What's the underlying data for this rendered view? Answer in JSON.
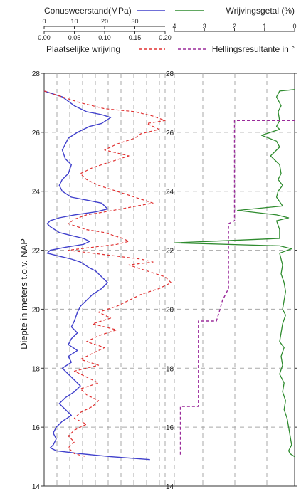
{
  "chart_data": {
    "type": "line",
    "ylabel": "Diepte in meters t.o.v. NAP",
    "ylim": [
      14,
      28
    ],
    "yticks": [
      "14",
      "16",
      "18",
      "20",
      "22",
      "24",
      "26",
      "28"
    ],
    "axes": {
      "cone": {
        "label": "Conusweerstand(MPa)",
        "ticks": [
          "0",
          "10",
          "20",
          "30"
        ],
        "range": [
          0,
          40
        ],
        "color": "#4040cc"
      },
      "friction": {
        "label": "Plaatselijke wrijving",
        "ticks": [
          "0.00",
          "0.05",
          "0.10",
          "0.15",
          "0.20"
        ],
        "range": [
          0,
          0.2
        ],
        "color": "#e03030"
      },
      "ratio": {
        "label": "Wrijvingsgetal (%)",
        "ticks": [
          "4",
          "3",
          "2",
          "1",
          "0"
        ],
        "range": [
          4,
          0
        ],
        "color": "#2e8b2e"
      },
      "incline": {
        "label": "Hellingsresultante in °",
        "color": "#9a2a9a"
      }
    },
    "series": [
      {
        "name": "Conusweerstand(MPa)",
        "axis": "cone",
        "points": [
          [
            0,
            27.4
          ],
          [
            6,
            27.2
          ],
          [
            10,
            26.9
          ],
          [
            14,
            26.7
          ],
          [
            19,
            26.6
          ],
          [
            22,
            26.5
          ],
          [
            19,
            26.3
          ],
          [
            15,
            26.2
          ],
          [
            11,
            26.0
          ],
          [
            8,
            25.8
          ],
          [
            7,
            25.6
          ],
          [
            6,
            25.4
          ],
          [
            7,
            25.1
          ],
          [
            9,
            24.9
          ],
          [
            8,
            24.6
          ],
          [
            6,
            24.4
          ],
          [
            5,
            24.2
          ],
          [
            6,
            24.0
          ],
          [
            9,
            23.8
          ],
          [
            14,
            23.7
          ],
          [
            19,
            23.6
          ],
          [
            21,
            23.4
          ],
          [
            17,
            23.3
          ],
          [
            10,
            23.2
          ],
          [
            5,
            23.1
          ],
          [
            2,
            23.0
          ],
          [
            1,
            22.9
          ],
          [
            2,
            22.8
          ],
          [
            5,
            22.6
          ],
          [
            9,
            22.5
          ],
          [
            13,
            22.4
          ],
          [
            15,
            22.3
          ],
          [
            13,
            22.2
          ],
          [
            7,
            22.1
          ],
          [
            2,
            22.0
          ],
          [
            1,
            21.9
          ],
          [
            5,
            21.8
          ],
          [
            9,
            21.7
          ],
          [
            12,
            21.6
          ],
          [
            15,
            21.4
          ],
          [
            17,
            21.3
          ],
          [
            19,
            21.1
          ],
          [
            21,
            20.9
          ],
          [
            19,
            20.7
          ],
          [
            16,
            20.5
          ],
          [
            14,
            20.3
          ],
          [
            12,
            20.1
          ],
          [
            11,
            19.9
          ],
          [
            10,
            19.6
          ],
          [
            9,
            19.4
          ],
          [
            11,
            19.2
          ],
          [
            9,
            19.0
          ],
          [
            8,
            18.8
          ],
          [
            11,
            18.6
          ],
          [
            8,
            18.4
          ],
          [
            9,
            18.2
          ],
          [
            6,
            18.0
          ],
          [
            8,
            17.8
          ],
          [
            10,
            17.6
          ],
          [
            12,
            17.4
          ],
          [
            10,
            17.2
          ],
          [
            7,
            17.0
          ],
          [
            5,
            16.8
          ],
          [
            7,
            16.6
          ],
          [
            9,
            16.4
          ],
          [
            6,
            16.2
          ],
          [
            4,
            16.0
          ],
          [
            3,
            15.8
          ],
          [
            4,
            15.6
          ],
          [
            3,
            15.4
          ],
          [
            2,
            15.3
          ],
          [
            4,
            15.2
          ],
          [
            12,
            15.1
          ],
          [
            22,
            15.0
          ],
          [
            35,
            14.9
          ]
        ]
      },
      {
        "name": "Plaatselijke wrijving",
        "axis": "friction",
        "points": [
          [
            0.0,
            27.4
          ],
          [
            0.03,
            27.2
          ],
          [
            0.06,
            27.0
          ],
          [
            0.1,
            26.8
          ],
          [
            0.15,
            26.7
          ],
          [
            0.18,
            26.55
          ],
          [
            0.2,
            26.4
          ],
          [
            0.17,
            26.3
          ],
          [
            0.19,
            26.1
          ],
          [
            0.16,
            25.95
          ],
          [
            0.15,
            25.8
          ],
          [
            0.12,
            25.6
          ],
          [
            0.1,
            25.4
          ],
          [
            0.14,
            25.2
          ],
          [
            0.11,
            25.0
          ],
          [
            0.08,
            24.8
          ],
          [
            0.06,
            24.6
          ],
          [
            0.07,
            24.4
          ],
          [
            0.09,
            24.2
          ],
          [
            0.12,
            24.0
          ],
          [
            0.15,
            23.8
          ],
          [
            0.18,
            23.6
          ],
          [
            0.14,
            23.45
          ],
          [
            0.1,
            23.3
          ],
          [
            0.07,
            23.2
          ],
          [
            0.05,
            23.05
          ],
          [
            0.04,
            22.9
          ],
          [
            0.07,
            22.7
          ],
          [
            0.1,
            22.6
          ],
          [
            0.13,
            22.4
          ],
          [
            0.14,
            22.3
          ],
          [
            0.12,
            22.2
          ],
          [
            0.08,
            22.1
          ],
          [
            0.04,
            22.0
          ],
          [
            0.08,
            21.9
          ],
          [
            0.12,
            21.8
          ],
          [
            0.16,
            21.7
          ],
          [
            0.18,
            21.6
          ],
          [
            0.14,
            21.5
          ],
          [
            0.17,
            21.3
          ],
          [
            0.2,
            21.1
          ],
          [
            0.21,
            20.9
          ],
          [
            0.19,
            20.7
          ],
          [
            0.16,
            20.5
          ],
          [
            0.14,
            20.3
          ],
          [
            0.12,
            20.1
          ],
          [
            0.09,
            19.9
          ],
          [
            0.11,
            19.7
          ],
          [
            0.08,
            19.5
          ],
          [
            0.12,
            19.3
          ],
          [
            0.09,
            19.1
          ],
          [
            0.07,
            18.9
          ],
          [
            0.1,
            18.7
          ],
          [
            0.08,
            18.5
          ],
          [
            0.06,
            18.3
          ],
          [
            0.09,
            18.1
          ],
          [
            0.05,
            17.9
          ],
          [
            0.07,
            17.7
          ],
          [
            0.09,
            17.5
          ],
          [
            0.06,
            17.3
          ],
          [
            0.07,
            17.1
          ],
          [
            0.09,
            16.9
          ],
          [
            0.08,
            16.7
          ],
          [
            0.06,
            16.5
          ],
          [
            0.05,
            16.3
          ],
          [
            0.07,
            16.1
          ],
          [
            0.05,
            15.9
          ],
          [
            0.04,
            15.7
          ],
          [
            0.05,
            15.5
          ],
          [
            0.04,
            15.3
          ],
          [
            0.05,
            15.1
          ],
          [
            0.07,
            15.0
          ]
        ]
      },
      {
        "name": "Wrijvingsgetal (%)",
        "axis": "ratio",
        "points": [
          [
            0.0,
            27.45
          ],
          [
            0.5,
            27.4
          ],
          [
            0.6,
            27.2
          ],
          [
            0.45,
            26.9
          ],
          [
            0.55,
            26.7
          ],
          [
            0.5,
            26.4
          ],
          [
            0.6,
            26.2
          ],
          [
            0.5,
            26.1
          ],
          [
            1.1,
            25.9
          ],
          [
            0.6,
            25.7
          ],
          [
            0.5,
            25.5
          ],
          [
            0.8,
            25.2
          ],
          [
            0.5,
            24.9
          ],
          [
            0.45,
            24.6
          ],
          [
            0.55,
            24.4
          ],
          [
            0.4,
            24.2
          ],
          [
            0.55,
            24.0
          ],
          [
            0.6,
            23.8
          ],
          [
            0.4,
            23.5
          ],
          [
            1.9,
            23.35
          ],
          [
            0.6,
            23.2
          ],
          [
            0.2,
            23.1
          ],
          [
            0.6,
            23.0
          ],
          [
            0.5,
            22.7
          ],
          [
            0.5,
            22.4
          ],
          [
            4.0,
            22.25
          ],
          [
            0.5,
            22.15
          ],
          [
            0.1,
            22.05
          ],
          [
            0.5,
            21.9
          ],
          [
            0.4,
            21.5
          ],
          [
            0.45,
            21.2
          ],
          [
            0.35,
            20.9
          ],
          [
            0.3,
            20.6
          ],
          [
            0.35,
            20.3
          ],
          [
            0.4,
            20.0
          ],
          [
            0.3,
            19.8
          ],
          [
            0.4,
            19.5
          ],
          [
            0.45,
            19.2
          ],
          [
            0.5,
            18.9
          ],
          [
            0.35,
            18.7
          ],
          [
            0.45,
            18.4
          ],
          [
            0.4,
            18.1
          ],
          [
            0.5,
            17.8
          ],
          [
            0.35,
            17.5
          ],
          [
            0.4,
            17.2
          ],
          [
            0.3,
            16.9
          ],
          [
            0.35,
            16.6
          ],
          [
            0.25,
            16.3
          ],
          [
            0.2,
            16.0
          ],
          [
            0.15,
            15.7
          ],
          [
            0.1,
            15.4
          ],
          [
            0.2,
            15.2
          ],
          [
            0.15,
            15.1
          ],
          [
            0.0,
            15.0
          ]
        ]
      },
      {
        "name": "Hellingsresultante in °",
        "axis": "incline",
        "points": [
          [
            0.0,
            26.4
          ],
          [
            0.5,
            26.4
          ],
          [
            0.5,
            26.3
          ],
          [
            0.5,
            23.0
          ],
          [
            0.55,
            22.9
          ],
          [
            0.55,
            20.7
          ],
          [
            0.6,
            20.3
          ],
          [
            0.62,
            20.0
          ],
          [
            0.65,
            19.6
          ],
          [
            0.8,
            19.6
          ],
          [
            0.8,
            16.7
          ],
          [
            0.95,
            16.7
          ],
          [
            0.95,
            15.0
          ]
        ]
      }
    ],
    "grid": true
  }
}
